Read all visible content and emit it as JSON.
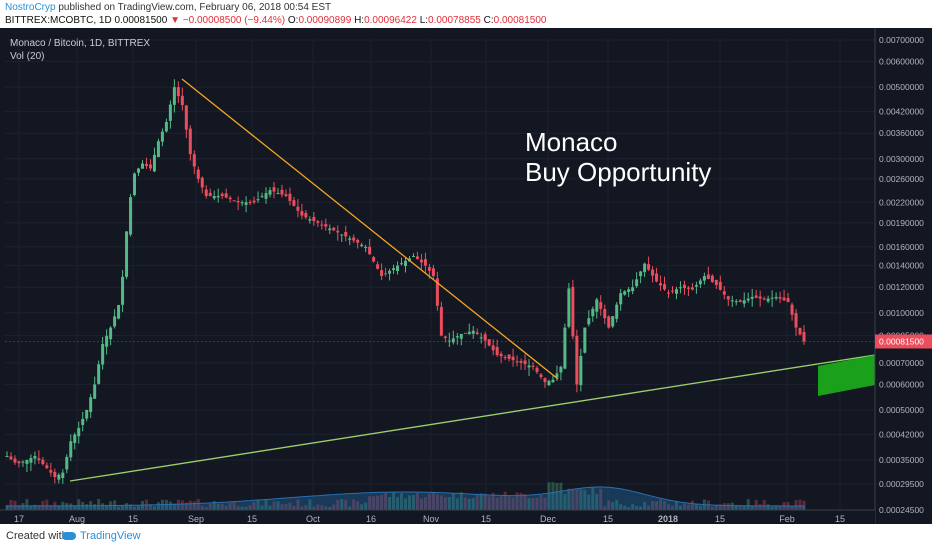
{
  "header": {
    "author": "NostroCryp",
    "published_text": "published on TradingView.com, February 06, 2018 00:54 EST",
    "symbol": "BITTREX:MCOBTC, 1D",
    "last": "0.00081500",
    "change_arrow": "▼",
    "change": "−0.00008500 (−9.44%)",
    "o_label": "O:",
    "o_value": "0.00090899",
    "h_label": "H:",
    "h_value": "0.00096422",
    "l_label": "L:",
    "l_value": "0.00078855",
    "c_label": "C:",
    "c_value": "0.00081500"
  },
  "legend": {
    "pair": "Monaco / Bitcoin, 1D, BITTREX",
    "vol": "Vol (20)"
  },
  "annotation": {
    "line1": "Monaco",
    "line2": "Buy Opportunity"
  },
  "colors": {
    "up": "#53b987",
    "down": "#eb4d5c",
    "bg": "#131722",
    "trend_down": "#f5a623",
    "trend_up": "#9bd06b",
    "box": "#1aa01a"
  },
  "footer": {
    "created_with": "Created with",
    "brand": "TradingView"
  },
  "chart_data": {
    "type": "candlestick",
    "ylim": [
      0.000245,
      0.0071
    ],
    "price_axis_labels": [
      "0.00700000",
      "0.00600000",
      "0.00500000",
      "0.00420000",
      "0.00360000",
      "0.00300000",
      "0.00260000",
      "0.00220000",
      "0.00190000",
      "0.00160000",
      "0.00140000",
      "0.00120000",
      "0.00100000",
      "0.00085000",
      "0.00070000",
      "0.00060000",
      "0.00050000",
      "0.00042000",
      "0.00035000",
      "0.00029500",
      "0.00024500"
    ],
    "current_price_label": "0.00081500",
    "x_ticks": [
      "17",
      "Aug",
      "15",
      "Sep",
      "15",
      "Oct",
      "16",
      "Nov",
      "15",
      "Dec",
      "15",
      "2018",
      "15",
      "Feb",
      "15"
    ],
    "candles_approx": [
      {
        "date": "Jul 15",
        "open": 0.00034,
        "high": 0.0004,
        "low": 0.00032,
        "close": 0.00035
      },
      {
        "date": "Jul 25",
        "open": 0.00035,
        "high": 0.00038,
        "low": 0.0003,
        "close": 0.00031
      },
      {
        "date": "Aug 05",
        "open": 0.00032,
        "high": 0.00045,
        "low": 0.00031,
        "close": 0.00043
      },
      {
        "date": "Aug 12",
        "open": 0.00045,
        "high": 0.001,
        "low": 0.00044,
        "close": 0.0009
      },
      {
        "date": "Aug 18",
        "open": 0.0015,
        "high": 0.0032,
        "low": 0.0014,
        "close": 0.003
      },
      {
        "date": "Aug 28",
        "open": 0.0038,
        "high": 0.006,
        "low": 0.0035,
        "close": 0.0054
      },
      {
        "date": "Sep 10",
        "open": 0.0024,
        "high": 0.0027,
        "low": 0.002,
        "close": 0.0022
      },
      {
        "date": "Oct 01",
        "open": 0.0024,
        "high": 0.0027,
        "low": 0.0021,
        "close": 0.0022
      },
      {
        "date": "Oct 20",
        "open": 0.0015,
        "high": 0.0017,
        "low": 0.0012,
        "close": 0.0013
      },
      {
        "date": "Nov 01",
        "open": 0.0014,
        "high": 0.0019,
        "low": 0.0008,
        "close": 0.00088
      },
      {
        "date": "Nov 20",
        "open": 0.00095,
        "high": 0.001,
        "low": 0.00065,
        "close": 0.00068
      },
      {
        "date": "Dec 01",
        "open": 0.0006,
        "high": 0.00065,
        "low": 0.00058,
        "close": 0.00062
      },
      {
        "date": "Dec 06",
        "open": 0.0007,
        "high": 0.0017,
        "low": 0.0006,
        "close": 0.0012
      },
      {
        "date": "Dec 25",
        "open": 0.0012,
        "high": 0.0015,
        "low": 0.0011,
        "close": 0.0014
      },
      {
        "date": "Jan 15",
        "open": 0.0013,
        "high": 0.0014,
        "low": 0.001,
        "close": 0.0011
      },
      {
        "date": "Feb 05",
        "open": 0.00090899,
        "high": 0.00096422,
        "low": 0.00078855,
        "close": 0.000815
      }
    ]
  }
}
